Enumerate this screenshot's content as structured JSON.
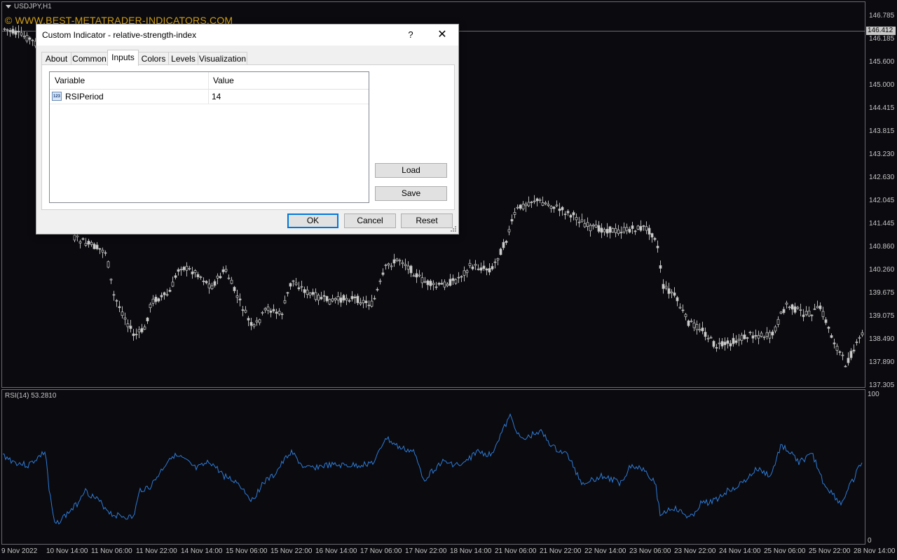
{
  "chart": {
    "symbol_title": "USDJPY,H1",
    "watermark": "© WWW.BEST-METATRADER-INDICATORS.COM",
    "current_price": "146.412",
    "price_axis": [
      "146.785",
      "146.185",
      "145.600",
      "145.000",
      "144.415",
      "143.815",
      "143.230",
      "142.630",
      "142.045",
      "141.445",
      "140.860",
      "140.260",
      "139.675",
      "139.075",
      "138.490",
      "137.890",
      "137.305"
    ],
    "rsi_title": "RSI(14) 53.2810",
    "rsi_axis_top": "100",
    "rsi_axis_bottom": "0",
    "time_axis": [
      "9 Nov 2022",
      "10 Nov 14:00",
      "11 Nov 06:00",
      "11 Nov 22:00",
      "14 Nov 14:00",
      "15 Nov 06:00",
      "15 Nov 22:00",
      "16 Nov 14:00",
      "17 Nov 06:00",
      "17 Nov 22:00",
      "18 Nov 14:00",
      "21 Nov 06:00",
      "21 Nov 22:00",
      "22 Nov 14:00",
      "23 Nov 06:00",
      "23 Nov 22:00",
      "24 Nov 14:00",
      "25 Nov 06:00",
      "25 Nov 22:00",
      "28 Nov 14:00"
    ],
    "colors": {
      "background": "#0a0a0f",
      "candles": "#c0c0c0",
      "rsi_line": "#2e7bd6",
      "watermark": "#d4a017"
    }
  },
  "dialog": {
    "title": "Custom Indicator - relative-strength-index",
    "help_label": "?",
    "close_label": "✕",
    "tabs": [
      "About",
      "Common",
      "Inputs",
      "Colors",
      "Levels",
      "Visualization"
    ],
    "active_tab": "Inputs",
    "grid": {
      "headers": [
        "Variable",
        "Value"
      ],
      "rows": [
        {
          "icon": "integer-param-icon",
          "icon_text": "123",
          "variable": "RSIPeriod",
          "value": "14"
        }
      ]
    },
    "side_buttons": {
      "load": "Load",
      "save": "Save"
    },
    "footer_buttons": {
      "ok": "OK",
      "cancel": "Cancel",
      "reset": "Reset"
    }
  }
}
